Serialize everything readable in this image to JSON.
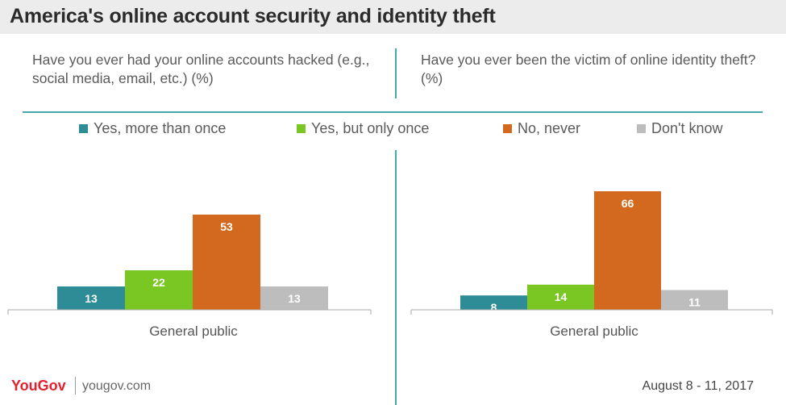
{
  "title": "America's online account security and identity theft",
  "questions": [
    "Have you ever had your online accounts hacked (e.g., social media, email, etc.) (%)",
    "Have you ever been the victim of online identity theft? (%)"
  ],
  "legend": [
    {
      "label": "Yes, more than once",
      "color": "#2e8c96"
    },
    {
      "label": "Yes, but only once",
      "color": "#7ac623"
    },
    {
      "label": "No, never",
      "color": "#d2691e"
    },
    {
      "label": "Don't know",
      "color": "#bdbdbd"
    }
  ],
  "chart_data": [
    {
      "type": "bar",
      "title": "Have you ever had your online accounts hacked (e.g., social media, email, etc.) (%)",
      "categories": [
        "General public"
      ],
      "series": [
        {
          "name": "Yes, more than once",
          "values": [
            13
          ]
        },
        {
          "name": "Yes, but only once",
          "values": [
            22
          ]
        },
        {
          "name": "No, never",
          "values": [
            53
          ]
        },
        {
          "name": "Don't know",
          "values": [
            13
          ]
        }
      ],
      "ylim": [
        0,
        75
      ]
    },
    {
      "type": "bar",
      "title": "Have you ever been the victim of online identity theft? (%)",
      "categories": [
        "General public"
      ],
      "series": [
        {
          "name": "Yes, more than once",
          "values": [
            8
          ]
        },
        {
          "name": "Yes, but only once",
          "values": [
            14
          ]
        },
        {
          "name": "No, never",
          "values": [
            66
          ]
        },
        {
          "name": "Don't know",
          "values": [
            11
          ]
        }
      ],
      "ylim": [
        0,
        75
      ]
    }
  ],
  "footer": {
    "logo": "YouGov",
    "url": "yougov.com",
    "date": "August 8 - 11, 2017"
  }
}
